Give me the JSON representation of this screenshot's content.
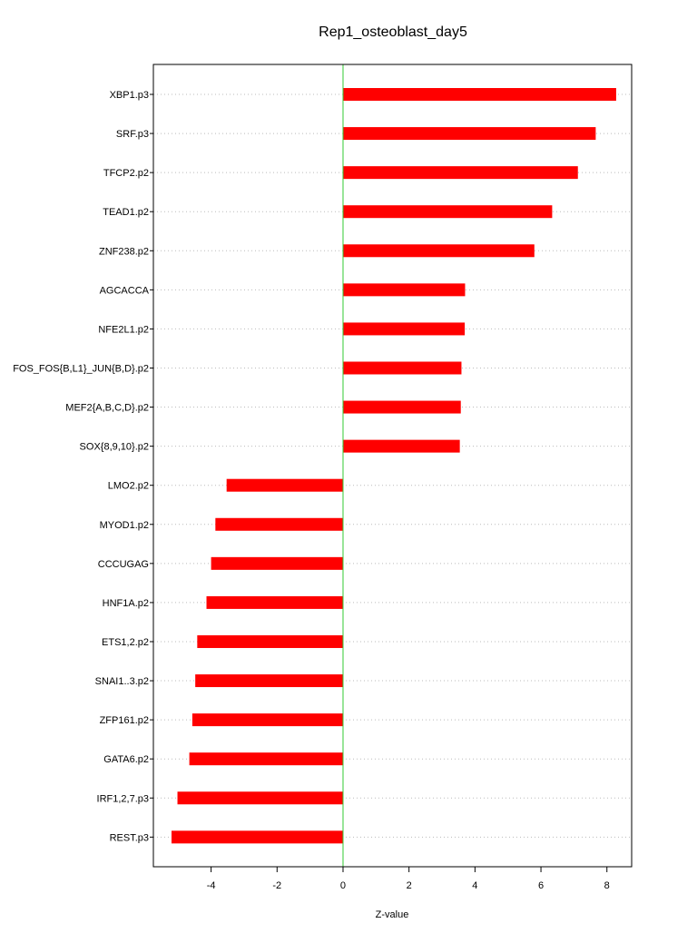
{
  "chart_data": {
    "type": "bar",
    "orientation": "horizontal",
    "title": "Rep1_osteoblast_day5",
    "xlabel": "Z-value",
    "ylabel": "",
    "xlim": [
      -5.75,
      8.75
    ],
    "xticks": [
      -4,
      -2,
      0,
      2,
      4,
      6,
      8
    ],
    "grid": true,
    "bar_color": "#ff0000",
    "zero_line_color": "#33cc33",
    "grid_color": "#bbbbbb",
    "categories": [
      "XBP1.p3",
      "SRF.p3",
      "TFCP2.p2",
      "TEAD1.p2",
      "ZNF238.p2",
      "AGCACCA",
      "NFE2L1.p2",
      "FOS_FOS{B,L1}_JUN{B,D}.p2",
      "MEF2{A,B,C,D}.p2",
      "SOX{8,9,10}.p2",
      "LMO2.p2",
      "MYOD1.p2",
      "CCCUGAG",
      "HNF1A.p2",
      "ETS1,2.p2",
      "SNAI1..3.p2",
      "ZFP161.p2",
      "GATA6.p2",
      "IRF1,2,7.p3",
      "REST.p3"
    ],
    "values": [
      8.28,
      7.66,
      7.12,
      6.34,
      5.8,
      3.7,
      3.69,
      3.59,
      3.57,
      3.54,
      -3.53,
      -3.87,
      -4.0,
      -4.14,
      -4.42,
      -4.48,
      -4.57,
      -4.66,
      -5.02,
      -5.2
    ]
  }
}
